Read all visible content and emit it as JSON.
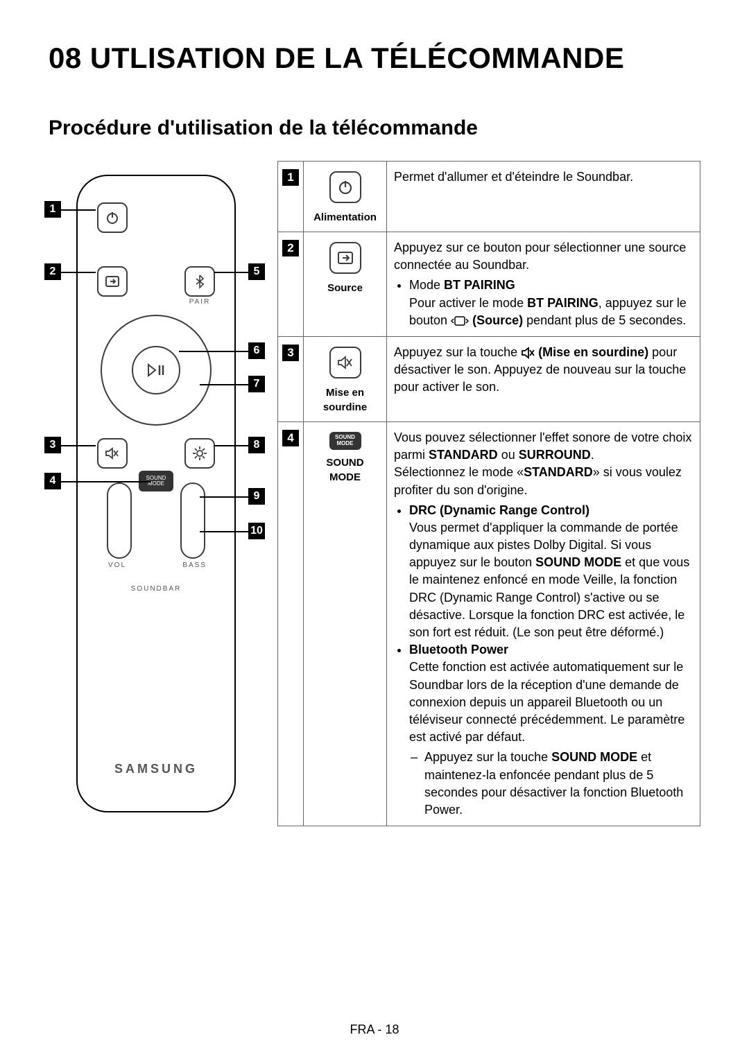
{
  "page": {
    "chapter_title": "08  UTLISATION DE LA TÉLÉCOMMANDE",
    "section_title": "Procédure d'utilisation de la télécommande",
    "footer": "FRA - 18"
  },
  "remote": {
    "brand": "SAMSUNG",
    "label_soundbar": "SOUNDBAR",
    "label_vol": "VOL",
    "label_bass": "BASS",
    "label_sound_mode_line1": "SOUND",
    "label_sound_mode_line2": "MODE",
    "label_pair": "PAIR",
    "callouts": [
      "1",
      "2",
      "3",
      "4",
      "5",
      "6",
      "7",
      "8",
      "9",
      "10"
    ]
  },
  "rows": [
    {
      "num": "1",
      "icon_type": "power",
      "label": "Alimentation",
      "desc_html": "Permet d'allumer et d'éteindre le Soundbar."
    },
    {
      "num": "2",
      "icon_type": "source",
      "label": "Source",
      "desc_html": "Appuyez sur ce bouton pour sélectionner une source connectée au Soundbar.<ul><li>Mode <b>BT PAIRING</b><br>Pour activer le mode <b>BT PAIRING</b>, appuyez sur le bouton <span class='inline-icon'><svg width='26' height='16' viewBox='0 0 26 16'><rect x='6' y='2' width='14' height='12' rx='2' fill='none' stroke='#000' stroke-width='1.5'/><path d='M4 5 L1 8 L4 11' fill='none' stroke='#000' stroke-width='1.5'/><path d='M22 5 L25 8 L22 11' fill='none' stroke='#000' stroke-width='1.5'/></svg></span> <b>(Source)</b> pendant plus de 5 secondes."
    },
    {
      "num": "3",
      "icon_type": "mute",
      "label": "Mise en sourdine",
      "desc_html": "Appuyez sur la touche <span class='inline-icon'><svg width='20' height='18' viewBox='0 0 20 18'><path d='M2 6 L6 6 L11 2 L11 16 L6 12 L2 12 Z' fill='none' stroke='#000' stroke-width='1.8'/><line x1='13' y1='5' x2='19' y2='13' stroke='#000' stroke-width='1.8'/><line x1='19' y1='5' x2='13' y2='13' stroke='#000' stroke-width='1.8'/></svg></span> <b>(Mise en sourdine)</b> pour désactiver le son.  Appuyez de nouveau sur la touche pour activer le son."
    },
    {
      "num": "4",
      "icon_type": "soundmode",
      "label": "SOUND MODE",
      "desc_html": "Vous pouvez sélectionner l'effet sonore de votre choix parmi <b>STANDARD</b> ou <b>SURROUND</b>.<br>Sélectionnez le mode «<b>STANDARD</b>» si vous voulez profiter du son d'origine.<ul><li><b>DRC (Dynamic Range Control)</b><br>Vous permet d'appliquer la commande de portée dynamique aux pistes Dolby Digital. Si vous appuyez sur le bouton <b>SOUND MODE</b> et que vous le maintenez enfoncé en mode Veille, la fonction DRC (Dynamic Range Control) s'active ou se désactive. Lorsque la fonction DRC est activée, le son fort est réduit. (Le son peut être déformé.)</li><li><b>Bluetooth Power</b><br>Cette fonction est activée automatiquement sur le Soundbar lors de la réception d'une demande de connexion depuis un appareil Bluetooth ou un téléviseur connecté précédemment. Le paramètre est activé par défaut.<ul><li>Appuyez sur la touche <b>SOUND MODE</b> et maintenez-la enfoncée pendant plus de 5 secondes pour désactiver la fonction Bluetooth Power.</li></ul></li></ul>"
    }
  ],
  "colors": {
    "text": "#000000",
    "border": "#666666",
    "icon_stroke": "#3d3d3d",
    "badge_bg": "#000000",
    "badge_fg": "#ffffff"
  }
}
